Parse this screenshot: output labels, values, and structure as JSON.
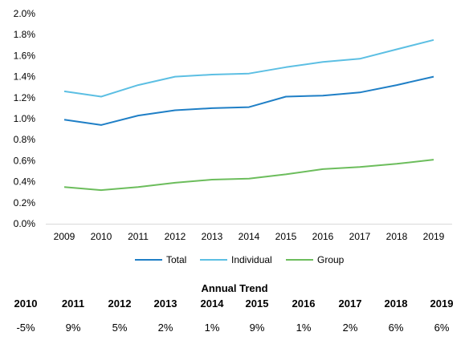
{
  "chart_data": {
    "type": "line",
    "x": [
      2009,
      2010,
      2011,
      2012,
      2013,
      2014,
      2015,
      2016,
      2017,
      2018,
      2019
    ],
    "ylim": [
      0,
      2.0
    ],
    "yticks": [
      "0.0%",
      "0.2%",
      "0.4%",
      "0.6%",
      "0.8%",
      "1.0%",
      "1.2%",
      "1.4%",
      "1.6%",
      "1.8%",
      "2.0%"
    ],
    "grid": false,
    "legend_position": "bottom",
    "series": [
      {
        "name": "Total",
        "color": "#1f7fc6",
        "values": [
          0.99,
          0.94,
          1.03,
          1.08,
          1.1,
          1.11,
          1.21,
          1.22,
          1.25,
          1.32,
          1.4
        ]
      },
      {
        "name": "Individual",
        "color": "#5cbfe3",
        "values": [
          1.26,
          1.21,
          1.32,
          1.4,
          1.42,
          1.43,
          1.49,
          1.54,
          1.57,
          1.66,
          1.75
        ]
      },
      {
        "name": "Group",
        "color": "#6cbd5c",
        "values": [
          0.35,
          0.32,
          0.35,
          0.39,
          0.42,
          0.43,
          0.47,
          0.52,
          0.54,
          0.57,
          0.61
        ]
      }
    ]
  },
  "annual_trend": {
    "title": "Annual Trend",
    "years": [
      "2010",
      "2011",
      "2012",
      "2013",
      "2014",
      "2015",
      "2016",
      "2017",
      "2018",
      "2019"
    ],
    "values": [
      "-5%",
      "9%",
      "5%",
      "2%",
      "1%",
      "9%",
      "1%",
      "2%",
      "6%",
      "6%"
    ]
  }
}
